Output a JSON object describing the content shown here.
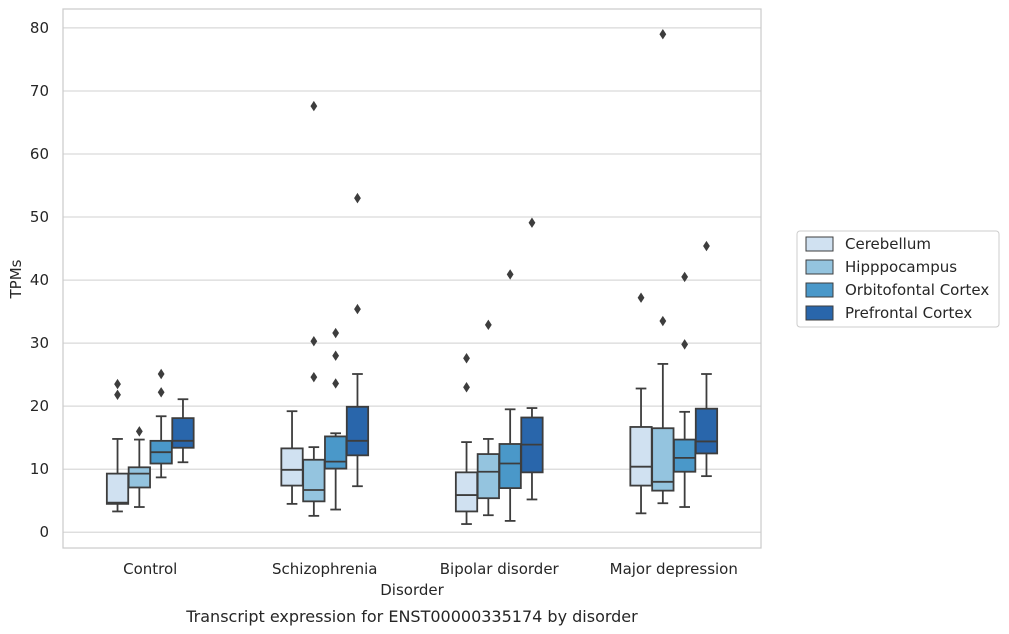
{
  "caption": "Transcript expression for ENST00000335174 by disorder",
  "chart_data": {
    "type": "box",
    "xlabel": "Disorder",
    "ylabel": "TPMs",
    "ylim": [
      -2.5,
      83
    ],
    "yticks": [
      0,
      10,
      20,
      30,
      40,
      50,
      60,
      70,
      80
    ],
    "grid": "horizontal",
    "legend_position": "right",
    "categories": [
      "Control",
      "Schizophrenia",
      "Bipolar disorder",
      "Major depression"
    ],
    "series": [
      {
        "name": "Cerebellum",
        "color": "#d0e1f1",
        "boxes": [
          {
            "whisker_low": 3.3,
            "q1": 4.5,
            "median": 4.7,
            "q3": 9.3,
            "whisker_high": 14.8,
            "outliers": [
              21.8,
              23.5
            ]
          },
          {
            "whisker_low": 4.5,
            "q1": 7.4,
            "median": 9.9,
            "q3": 13.3,
            "whisker_high": 19.2,
            "outliers": []
          },
          {
            "whisker_low": 1.3,
            "q1": 3.3,
            "median": 5.9,
            "q3": 9.5,
            "whisker_high": 14.3,
            "outliers": [
              23.0,
              27.6
            ]
          },
          {
            "whisker_low": 3.0,
            "q1": 7.4,
            "median": 10.4,
            "q3": 16.7,
            "whisker_high": 22.8,
            "outliers": [
              37.2
            ]
          }
        ]
      },
      {
        "name": "Hipppocampus",
        "color": "#94c4df",
        "boxes": [
          {
            "whisker_low": 4.0,
            "q1": 7.1,
            "median": 9.3,
            "q3": 10.3,
            "whisker_high": 14.7,
            "outliers": [
              16.0
            ]
          },
          {
            "whisker_low": 2.6,
            "q1": 4.9,
            "median": 6.7,
            "q3": 11.5,
            "whisker_high": 13.5,
            "outliers": [
              24.6,
              30.3,
              67.6
            ]
          },
          {
            "whisker_low": 2.7,
            "q1": 5.4,
            "median": 9.6,
            "q3": 12.4,
            "whisker_high": 14.8,
            "outliers": [
              32.9
            ]
          },
          {
            "whisker_low": 4.6,
            "q1": 6.6,
            "median": 8.0,
            "q3": 16.5,
            "whisker_high": 26.7,
            "outliers": [
              33.5,
              79.0
            ]
          }
        ]
      },
      {
        "name": "Orbitofontal Cortex",
        "color": "#4a98c9",
        "boxes": [
          {
            "whisker_low": 8.7,
            "q1": 10.9,
            "median": 12.7,
            "q3": 14.5,
            "whisker_high": 18.4,
            "outliers": [
              22.2,
              25.1
            ]
          },
          {
            "whisker_low": 3.6,
            "q1": 10.1,
            "median": 11.2,
            "q3": 15.2,
            "whisker_high": 15.7,
            "outliers": [
              23.6,
              28.0,
              31.6
            ]
          },
          {
            "whisker_low": 1.8,
            "q1": 7.0,
            "median": 10.9,
            "q3": 14.0,
            "whisker_high": 19.5,
            "outliers": [
              40.9
            ]
          },
          {
            "whisker_low": 4.0,
            "q1": 9.6,
            "median": 11.8,
            "q3": 14.7,
            "whisker_high": 19.1,
            "outliers": [
              29.8,
              40.5
            ]
          }
        ]
      },
      {
        "name": "Prefrontal Cortex",
        "color": "#2966ab",
        "boxes": [
          {
            "whisker_low": 11.1,
            "q1": 13.4,
            "median": 14.5,
            "q3": 18.1,
            "whisker_high": 21.1,
            "outliers": []
          },
          {
            "whisker_low": 7.3,
            "q1": 12.2,
            "median": 14.5,
            "q3": 19.9,
            "whisker_high": 25.1,
            "outliers": [
              35.4,
              53.0
            ]
          },
          {
            "whisker_low": 5.2,
            "q1": 9.5,
            "median": 13.9,
            "q3": 18.2,
            "whisker_high": 19.7,
            "outliers": [
              49.1
            ]
          },
          {
            "whisker_low": 8.9,
            "q1": 12.5,
            "median": 14.4,
            "q3": 19.6,
            "whisker_high": 25.1,
            "outliers": [
              45.4
            ]
          }
        ]
      }
    ]
  }
}
